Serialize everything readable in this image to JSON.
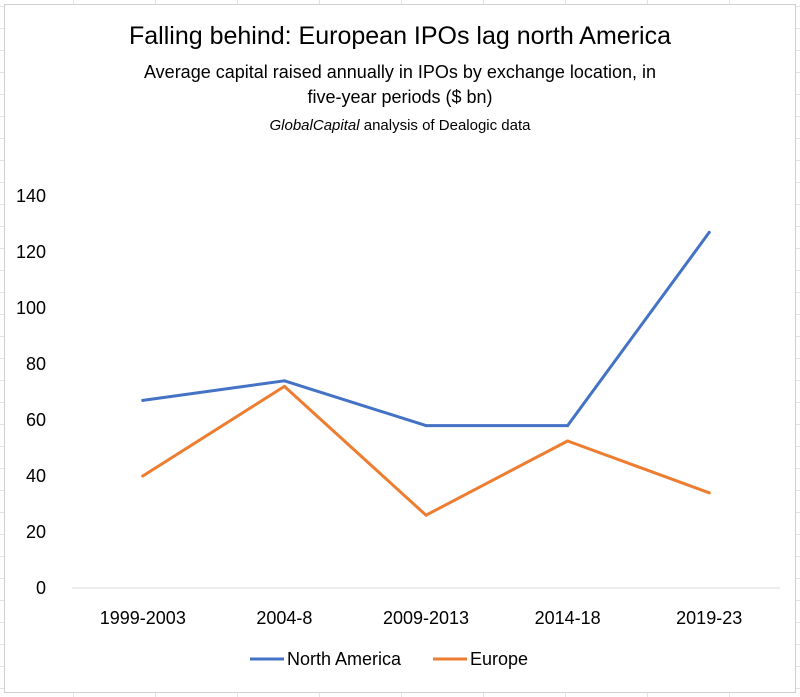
{
  "chart_data": {
    "type": "line",
    "title": "Falling behind: European IPOs lag north America",
    "subtitle_lines": [
      "Average capital raised annually in IPOs by exchange location, in",
      "five-year periods ($ bn)"
    ],
    "note_italic": "GlobalCapital",
    "note_rest": " analysis of Dealogic data",
    "categories": [
      "1999-2003",
      "2004-8",
      "2009-2013",
      "2014-18",
      "2019-23"
    ],
    "series": [
      {
        "name": "North America",
        "color": "#4472C4",
        "values": [
          67,
          74,
          58,
          58,
          127
        ]
      },
      {
        "name": "Europe",
        "color": "#ED7D31",
        "values": [
          40,
          72,
          26,
          52.5,
          34
        ]
      }
    ],
    "ylim": [
      0,
      140
    ],
    "yticks": [
      0,
      20,
      40,
      60,
      80,
      100,
      120,
      140
    ],
    "xlabel": "",
    "ylabel": "",
    "grid": false,
    "legend": "bottom"
  }
}
